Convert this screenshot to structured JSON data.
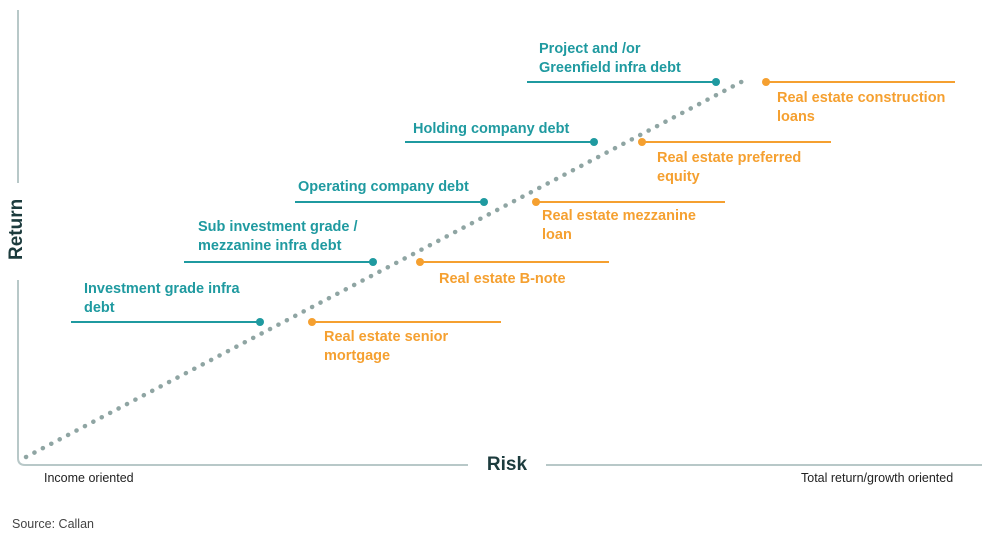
{
  "axes": {
    "y_title": "Return",
    "x_title": "Risk",
    "x_left_label": "Income oriented",
    "x_right_label": "Total return/growth oriented"
  },
  "source": "Source: Callan",
  "colors": {
    "infra": "#1f9aa0",
    "real_estate": "#f5a030",
    "axis": "#b8c8c8",
    "trend": "#8fa5a3",
    "title": "#1c3b3d"
  },
  "infra_items": [
    {
      "line1": "Project and /or",
      "line2": "Greenfield infra debt"
    },
    {
      "line1": "Holding company debt",
      "line2": ""
    },
    {
      "line1": "Operating company debt",
      "line2": ""
    },
    {
      "line1": "Sub investment grade /",
      "line2": "mezzanine infra debt"
    },
    {
      "line1": "Investment grade infra",
      "line2": "debt"
    }
  ],
  "real_estate_items": [
    {
      "line1": "Real estate construction",
      "line2": "loans"
    },
    {
      "line1": "Real estate preferred",
      "line2": "equity"
    },
    {
      "line1": "Real estate mezzanine",
      "line2": "loan"
    },
    {
      "line1": "Real estate B-note",
      "line2": ""
    },
    {
      "line1": "Real estate senior",
      "line2": "mortgage"
    }
  ]
}
